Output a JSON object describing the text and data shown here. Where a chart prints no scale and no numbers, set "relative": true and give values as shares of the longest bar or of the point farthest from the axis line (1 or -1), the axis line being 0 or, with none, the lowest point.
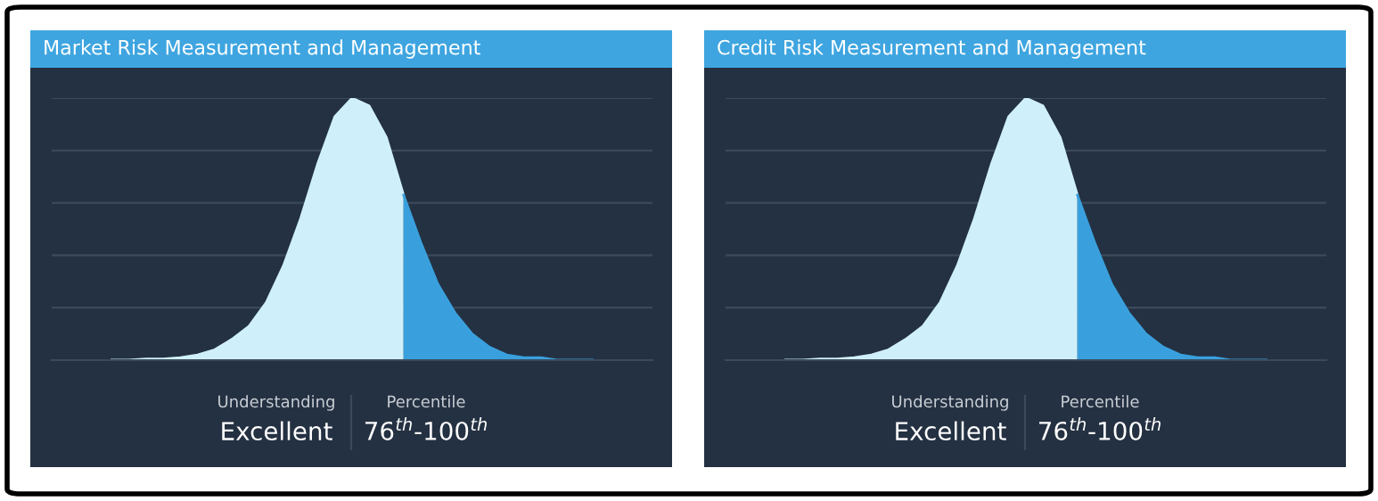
{
  "chart_data": [
    {
      "type": "area",
      "title": "Market Risk Measurement and Management",
      "relative": true,
      "grid": "y",
      "legend": false,
      "categories": [
        null,
        null,
        null,
        null,
        null,
        null,
        null,
        null,
        null,
        null,
        null,
        null,
        null,
        null,
        null,
        null,
        null,
        null,
        null,
        null,
        null,
        null,
        null,
        null,
        null,
        null,
        null,
        null,
        null
      ],
      "series": [
        {
          "color": "#cff0fa",
          "values": [
            0,
            0,
            0.005,
            0.005,
            0.01,
            0.02,
            0.04,
            0.08,
            0.13,
            0.22,
            0.36,
            0.54,
            0.75,
            0.93,
            1.0,
            0.97,
            0.85,
            0.63,
            null,
            null,
            null,
            null,
            null,
            null,
            null,
            null,
            null,
            null,
            null
          ]
        },
        {
          "color": "#3aa0dd",
          "values": [
            null,
            null,
            null,
            null,
            null,
            null,
            null,
            null,
            null,
            null,
            null,
            null,
            null,
            null,
            null,
            null,
            null,
            0.63,
            0.45,
            0.29,
            0.18,
            0.1,
            0.05,
            0.02,
            0.01,
            0.01,
            0,
            0,
            0
          ]
        }
      ],
      "annotations": [
        "Understanding",
        "Excellent",
        "Percentile",
        "76$^{th}$-100$^{th}$"
      ]
    },
    {
      "type": "area",
      "title": "Credit Risk Measurement and Management",
      "relative": true,
      "grid": "y",
      "legend": false,
      "categories": [
        null,
        null,
        null,
        null,
        null,
        null,
        null,
        null,
        null,
        null,
        null,
        null,
        null,
        null,
        null,
        null,
        null,
        null,
        null,
        null,
        null,
        null,
        null,
        null,
        null,
        null,
        null,
        null,
        null
      ],
      "series": [
        {
          "color": "#cff0fa",
          "values": [
            0,
            0,
            0.005,
            0.005,
            0.01,
            0.02,
            0.04,
            0.08,
            0.13,
            0.22,
            0.36,
            0.54,
            0.75,
            0.93,
            1.0,
            0.97,
            0.85,
            0.63,
            null,
            null,
            null,
            null,
            null,
            null,
            null,
            null,
            null,
            null,
            null
          ]
        },
        {
          "color": "#3aa0dd",
          "values": [
            null,
            null,
            null,
            null,
            null,
            null,
            null,
            null,
            null,
            null,
            null,
            null,
            null,
            null,
            null,
            null,
            null,
            0.63,
            0.45,
            0.29,
            0.18,
            0.1,
            0.05,
            0.02,
            0.01,
            0.01,
            0,
            0,
            0
          ]
        }
      ],
      "annotations": [
        "Understanding",
        "Excellent",
        "Percentile",
        "76$^{th}$-100$^{th}$"
      ]
    }
  ]
}
